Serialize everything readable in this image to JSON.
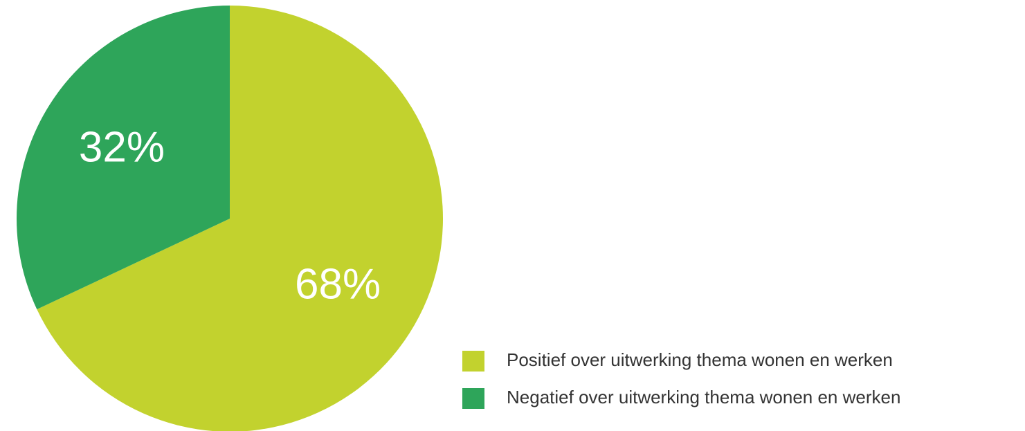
{
  "chart_data": {
    "type": "pie",
    "categories": [
      "Positief over uitwerking thema wonen en werken",
      "Negatief over uitwerking thema wonen en werken"
    ],
    "values": [
      68,
      32
    ],
    "value_labels": [
      "68%",
      "32%"
    ],
    "colors": [
      "#c2d22e",
      "#2ea55a"
    ]
  }
}
